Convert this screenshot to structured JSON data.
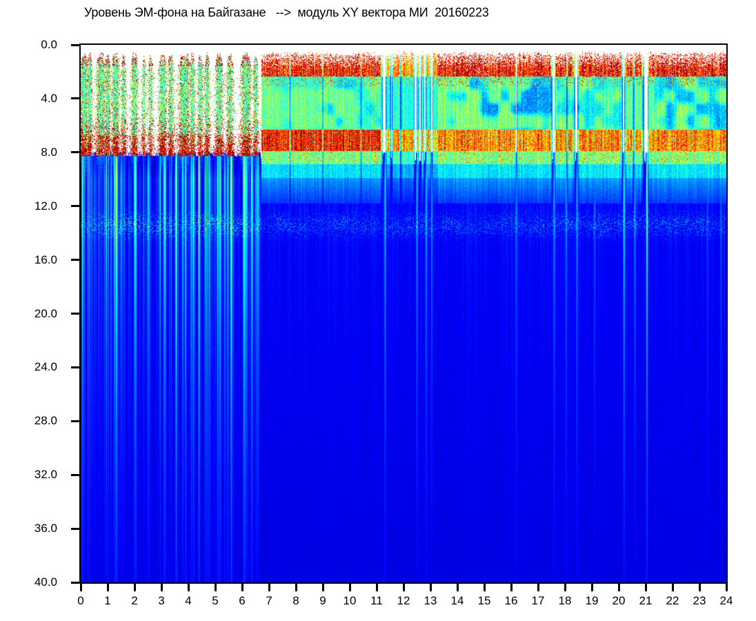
{
  "colors": {
    "background": "#ffffff",
    "axis": "#000000",
    "text": "#000000"
  },
  "chart_data": {
    "type": "heatmap",
    "title": "Уровень ЭМ-фона на Байгазане   -->  модуль XY вектора МИ  20160223",
    "station": "Байгазан",
    "quantity": "модуль XY вектора МИ",
    "date": "20160223",
    "colormap": "jet-on-white (white = below noise floor)",
    "x_axis": {
      "min": 0,
      "max": 24,
      "tick_step": 1,
      "ticks": [
        "0",
        "1",
        "2",
        "3",
        "4",
        "5",
        "6",
        "7",
        "8",
        "9",
        "10",
        "11",
        "12",
        "13",
        "14",
        "15",
        "16",
        "17",
        "18",
        "19",
        "20",
        "21",
        "22",
        "23",
        "24"
      ]
    },
    "y_axis": {
      "min": 0,
      "max": 40,
      "tick_step": 4,
      "inverted": true,
      "ticks": [
        "0.0",
        "4.0",
        "8.0",
        "12.0",
        "16.0",
        "20.0",
        "24.0",
        "28.0",
        "32.0",
        "36.0",
        "40.0"
      ]
    },
    "features": {
      "night_interval_hours": [
        0,
        6.72
      ],
      "night_pattern": "bursty vertical columns, red speckle 1-8 Hz with green/cyan cores, white gaps between bursts above 8 Hz, cyan streaks descending to 40 Hz",
      "day_pattern": "continuous block: red speckle top 0.8-2.4, green 2.4-6.3 with blue mottling, strong red band 6.3-7.9, cyan tail to ~10, deep blue below",
      "horizontal_bands": [
        {
          "center_hz": 13.4,
          "sigma_hz": 0.8,
          "note": "faint speckled cyan band across full day"
        }
      ],
      "red_band_hz": [
        6.3,
        7.9
      ],
      "background_below_10hz": "deep blue"
    },
    "model": {
      "seed": 1337,
      "night_end": 6.72,
      "white_threshold": 0.05,
      "red_band_strong_until": 13,
      "band_center": 13.4,
      "band_sigma": 0.8,
      "streak_width_h": 0.022,
      "streak_fade_hz": 16,
      "night_bursts": [
        {
          "c": 0.12,
          "w": 0.1,
          "a": 1.0
        },
        {
          "c": 0.32,
          "w": 0.08,
          "a": 0.85
        },
        {
          "c": 0.75,
          "w": 0.12,
          "a": 0.9
        },
        {
          "c": 1.0,
          "w": 0.08,
          "a": 0.8
        },
        {
          "c": 1.3,
          "w": 0.1,
          "a": 0.95
        },
        {
          "c": 1.6,
          "w": 0.07,
          "a": 0.7
        },
        {
          "c": 2.0,
          "w": 0.09,
          "a": 0.85
        },
        {
          "c": 2.35,
          "w": 0.06,
          "a": 0.6
        },
        {
          "c": 2.6,
          "w": 0.07,
          "a": 0.65
        },
        {
          "c": 3.05,
          "w": 0.1,
          "a": 0.9
        },
        {
          "c": 3.35,
          "w": 0.08,
          "a": 0.75
        },
        {
          "c": 3.85,
          "w": 0.14,
          "a": 1.0
        },
        {
          "c": 4.15,
          "w": 0.07,
          "a": 0.8
        },
        {
          "c": 4.45,
          "w": 0.08,
          "a": 0.75
        },
        {
          "c": 4.7,
          "w": 0.07,
          "a": 0.8
        },
        {
          "c": 5.15,
          "w": 0.1,
          "a": 0.85
        },
        {
          "c": 5.55,
          "w": 0.09,
          "a": 0.8
        },
        {
          "c": 6.15,
          "w": 0.13,
          "a": 1.0
        },
        {
          "c": 6.5,
          "w": 0.07,
          "a": 0.78
        }
      ],
      "day_gaps": [
        {
          "c": 7.78,
          "w": 0.015,
          "g": 0.45
        },
        {
          "c": 9.0,
          "w": 0.015,
          "g": 0.5
        },
        {
          "c": 10.42,
          "w": 0.015,
          "g": 0.5
        },
        {
          "c": 11.28,
          "w": 0.05,
          "g": 1.0
        },
        {
          "c": 11.55,
          "w": 0.03,
          "g": 0.8
        },
        {
          "c": 11.9,
          "w": 0.02,
          "g": 0.6
        },
        {
          "c": 12.45,
          "w": 0.04,
          "g": 0.9
        },
        {
          "c": 12.62,
          "w": 0.03,
          "g": 0.85
        },
        {
          "c": 12.8,
          "w": 0.03,
          "g": 0.8
        },
        {
          "c": 13.05,
          "w": 0.03,
          "g": 0.7
        },
        {
          "c": 16.2,
          "w": 0.02,
          "g": 0.75
        },
        {
          "c": 17.57,
          "w": 0.04,
          "g": 0.95
        },
        {
          "c": 18.07,
          "w": 0.02,
          "g": 0.6
        },
        {
          "c": 18.42,
          "w": 0.05,
          "g": 0.9
        },
        {
          "c": 20.18,
          "w": 0.04,
          "g": 0.9
        },
        {
          "c": 20.55,
          "w": 0.02,
          "g": 0.6
        },
        {
          "c": 21.0,
          "w": 0.07,
          "g": 0.95
        }
      ],
      "day_weak_windows": [
        {
          "t0": 11.15,
          "t1": 13.25,
          "k": 0.85
        }
      ],
      "mottle_windows": [
        {
          "t0": 7.0,
          "t1": 9.2,
          "m": 0.25
        },
        {
          "t0": 9.2,
          "t1": 11.15,
          "m": 0.5
        },
        {
          "t0": 13.3,
          "t1": 17.5,
          "m": 0.75
        },
        {
          "t0": 17.7,
          "t1": 20.1,
          "m": 0.45
        },
        {
          "t0": 21.25,
          "t1": 24,
          "m": 0.65
        }
      ],
      "streaks": [
        {
          "c": 0.95,
          "s": 0.5
        },
        {
          "c": 1.35,
          "s": 0.6
        },
        {
          "c": 2.05,
          "s": 0.5
        },
        {
          "c": 2.5,
          "s": 0.45
        },
        {
          "c": 3.1,
          "s": 0.5
        },
        {
          "c": 3.55,
          "s": 0.8
        },
        {
          "c": 3.9,
          "s": 0.6
        },
        {
          "c": 4.15,
          "s": 0.5
        },
        {
          "c": 4.4,
          "s": 0.9
        },
        {
          "c": 4.65,
          "s": 0.6
        },
        {
          "c": 4.8,
          "s": 0.5
        },
        {
          "c": 5.1,
          "s": 0.8
        },
        {
          "c": 5.35,
          "s": 0.5
        },
        {
          "c": 5.6,
          "s": 0.85
        },
        {
          "c": 6.1,
          "s": 0.9
        },
        {
          "c": 6.35,
          "s": 0.6
        },
        {
          "c": 6.6,
          "s": 0.5
        },
        {
          "c": 11.32,
          "s": 0.6
        },
        {
          "c": 12.5,
          "s": 0.45
        },
        {
          "c": 12.85,
          "s": 0.5
        },
        {
          "c": 13.05,
          "s": 0.4
        },
        {
          "c": 16.2,
          "s": 0.3
        },
        {
          "c": 17.6,
          "s": 0.5
        },
        {
          "c": 18.05,
          "s": 0.4
        },
        {
          "c": 18.45,
          "s": 0.45
        },
        {
          "c": 19.1,
          "s": 0.3
        },
        {
          "c": 20.2,
          "s": 0.7
        },
        {
          "c": 20.6,
          "s": 0.4
        },
        {
          "c": 21.05,
          "s": 0.8
        },
        {
          "c": 23.3,
          "s": 0.25
        },
        {
          "c": 23.8,
          "s": 0.3
        }
      ]
    }
  }
}
